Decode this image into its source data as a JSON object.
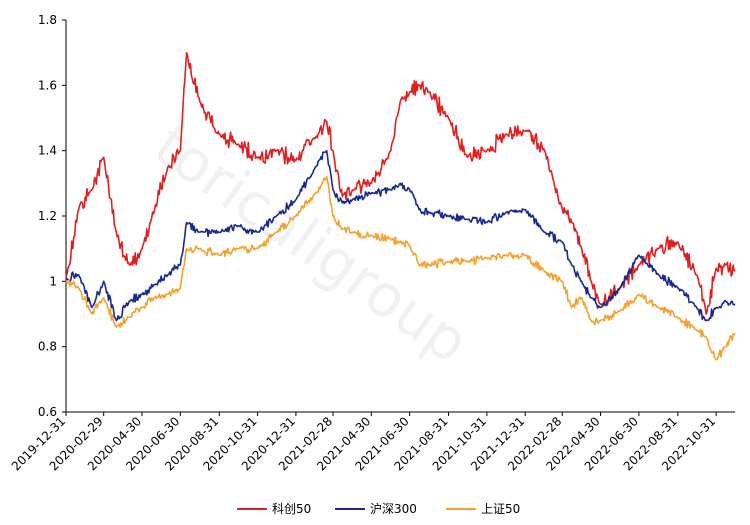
{
  "chart_data": {
    "type": "line",
    "title": "",
    "xlabel": "",
    "ylabel": "",
    "ylim": [
      0.6,
      1.8
    ],
    "yticks": [
      "0.6",
      "0.8",
      "1",
      "1.2",
      "1.4",
      "1.6",
      "1.8"
    ],
    "x_tick_labels": [
      "2019-12-31",
      "2020-02-29",
      "2020-04-30",
      "2020-06-30",
      "2020-08-31",
      "2020-10-31",
      "2020-12-31",
      "2021-02-28",
      "2021-04-30",
      "2021-06-30",
      "2021-08-31",
      "2021-10-31",
      "2021-12-31",
      "2022-02-28",
      "2022-04-30",
      "2022-06-30",
      "2022-08-31",
      "2022-10-31"
    ],
    "grid": false,
    "legend_position": "bottom",
    "watermark": "toricaligroup",
    "x": [
      "2019-12-31",
      "2020-01-20",
      "2020-02-10",
      "2020-02-29",
      "2020-03-20",
      "2020-04-10",
      "2020-04-30",
      "2020-05-20",
      "2020-06-10",
      "2020-06-30",
      "2020-07-10",
      "2020-07-31",
      "2020-08-31",
      "2020-09-30",
      "2020-10-31",
      "2020-11-30",
      "2020-12-31",
      "2021-01-31",
      "2021-02-18",
      "2021-02-28",
      "2021-03-15",
      "2021-03-31",
      "2021-04-30",
      "2021-05-31",
      "2021-06-15",
      "2021-06-30",
      "2021-07-15",
      "2021-07-31",
      "2021-08-31",
      "2021-09-30",
      "2021-10-31",
      "2021-11-30",
      "2021-12-31",
      "2022-01-31",
      "2022-02-28",
      "2022-03-15",
      "2022-03-31",
      "2022-04-15",
      "2022-04-30",
      "2022-05-31",
      "2022-06-30",
      "2022-07-31",
      "2022-08-31",
      "2022-09-30",
      "2022-10-15",
      "2022-10-31",
      "2022-11-15",
      "2022-11-30"
    ],
    "series": [
      {
        "name": "科创50",
        "color": "#e02020",
        "values": [
          1.01,
          1.22,
          1.28,
          1.38,
          1.15,
          1.05,
          1.1,
          1.22,
          1.35,
          1.4,
          1.7,
          1.55,
          1.45,
          1.42,
          1.38,
          1.4,
          1.37,
          1.44,
          1.49,
          1.4,
          1.26,
          1.28,
          1.3,
          1.4,
          1.55,
          1.58,
          1.6,
          1.58,
          1.5,
          1.38,
          1.4,
          1.45,
          1.46,
          1.4,
          1.22,
          1.18,
          1.1,
          1.0,
          0.93,
          0.98,
          1.05,
          1.1,
          1.12,
          1.02,
          0.9,
          1.04,
          1.05,
          1.03
        ]
      },
      {
        "name": "沪深300",
        "color": "#1a2a8c",
        "values": [
          1.01,
          1.02,
          0.92,
          1.0,
          0.88,
          0.94,
          0.96,
          0.99,
          1.02,
          1.05,
          1.18,
          1.15,
          1.15,
          1.17,
          1.15,
          1.2,
          1.25,
          1.35,
          1.4,
          1.28,
          1.24,
          1.25,
          1.27,
          1.28,
          1.3,
          1.28,
          1.22,
          1.21,
          1.2,
          1.19,
          1.18,
          1.21,
          1.22,
          1.15,
          1.12,
          1.05,
          1.0,
          0.95,
          0.92,
          0.98,
          1.08,
          1.02,
          0.98,
          0.92,
          0.88,
          0.92,
          0.94,
          0.93
        ]
      },
      {
        "name": "上证50",
        "color": "#f5a030",
        "values": [
          1.0,
          0.98,
          0.9,
          0.95,
          0.86,
          0.89,
          0.92,
          0.95,
          0.96,
          0.98,
          1.1,
          1.1,
          1.08,
          1.1,
          1.1,
          1.15,
          1.2,
          1.27,
          1.32,
          1.2,
          1.16,
          1.15,
          1.14,
          1.13,
          1.12,
          1.11,
          1.05,
          1.05,
          1.06,
          1.06,
          1.07,
          1.08,
          1.08,
          1.03,
          1.0,
          0.92,
          0.95,
          0.88,
          0.88,
          0.91,
          0.96,
          0.92,
          0.89,
          0.85,
          0.83,
          0.76,
          0.8,
          0.84
        ]
      }
    ]
  }
}
